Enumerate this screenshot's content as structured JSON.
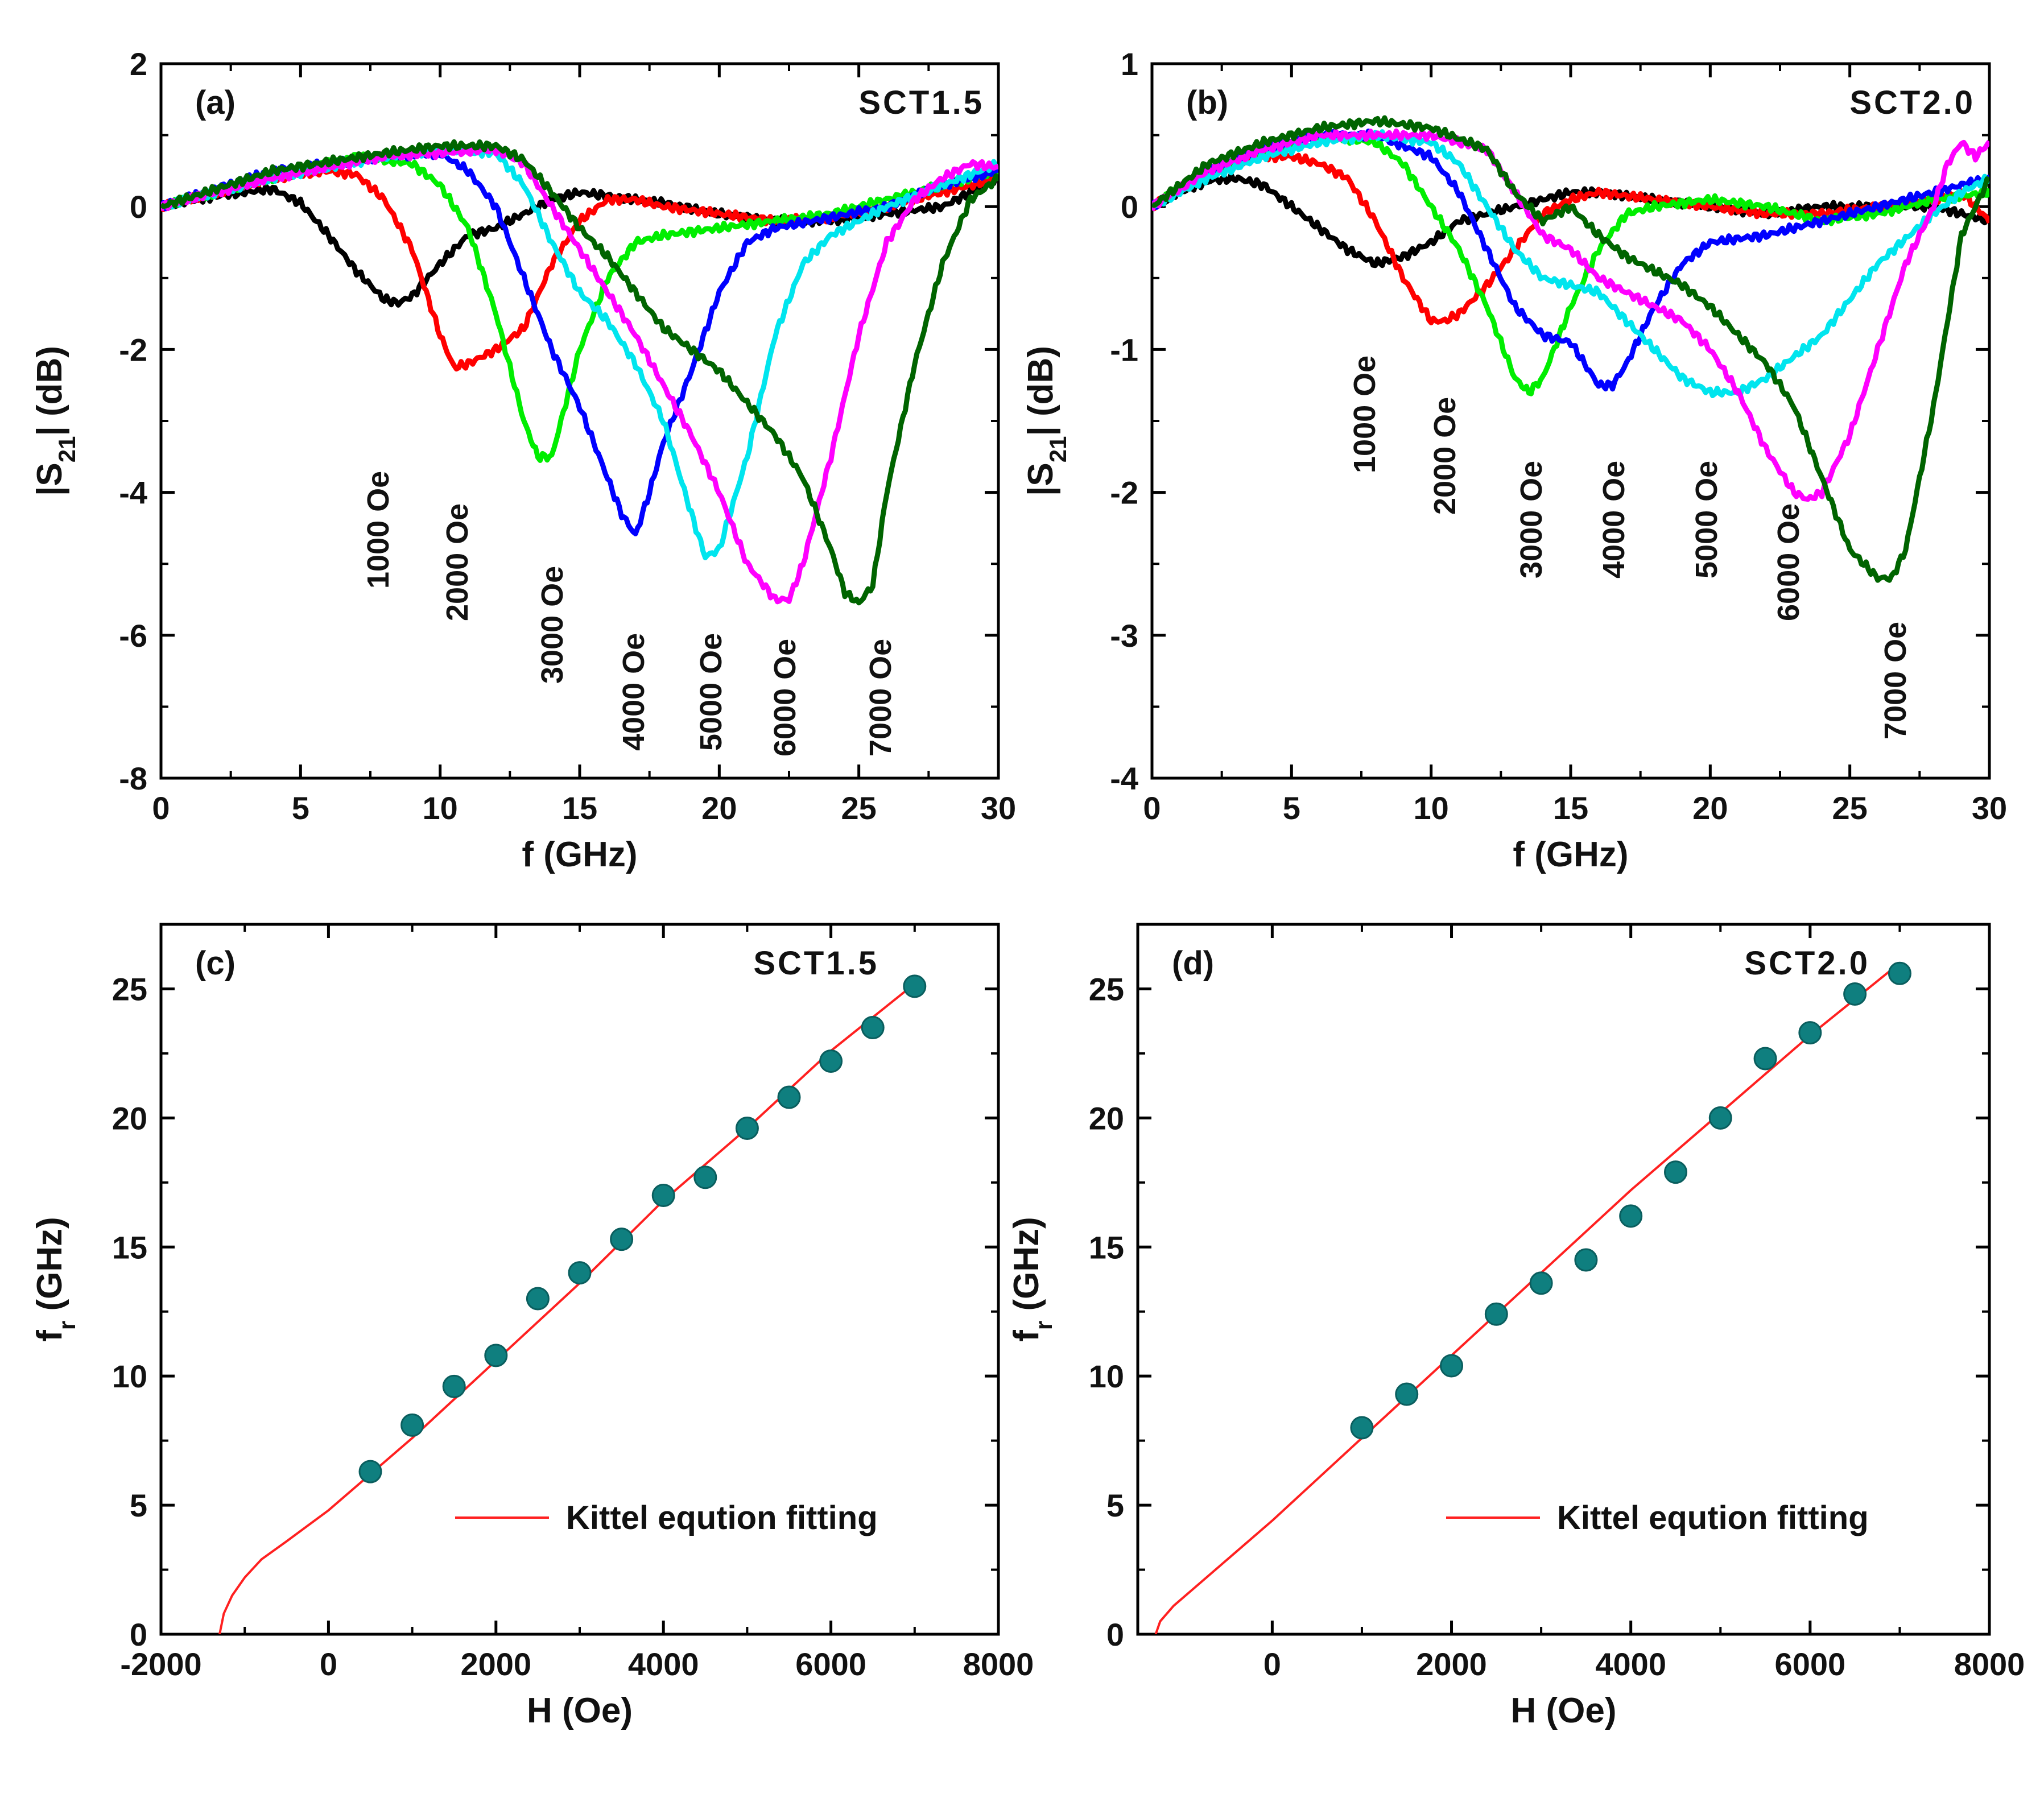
{
  "chart_data": [
    {
      "panel": "(a)",
      "type": "line",
      "sample": "SCT1.5",
      "xlabel": "f (GHz)",
      "ylabel": "|S21| (dB)",
      "xlim": [
        0,
        30
      ],
      "ylim": [
        -8,
        2
      ],
      "xticks": [
        "0",
        "5",
        "10",
        "15",
        "20",
        "25",
        "30"
      ],
      "yticks": [
        "2",
        "0",
        "-2",
        "-4",
        "-6",
        "-8"
      ],
      "grid": false,
      "series": [
        {
          "name": "1000 Oe",
          "color": "#000000",
          "x": [
            0,
            2,
            4,
            5,
            6,
            7,
            8,
            8.5,
            9,
            10,
            11,
            12,
            14,
            15,
            16,
            18,
            20,
            22,
            24,
            26,
            28,
            29,
            30
          ],
          "y": [
            0,
            0.15,
            0.25,
            0.05,
            -0.4,
            -0.9,
            -1.3,
            -1.35,
            -1.25,
            -0.8,
            -0.4,
            -0.3,
            0.1,
            0.2,
            0.15,
            0.05,
            -0.1,
            -0.2,
            -0.2,
            -0.1,
            0,
            0.2,
            0.4
          ]
        },
        {
          "name": "2000 Oe",
          "color": "#ff0000",
          "x": [
            0,
            2,
            4,
            6,
            7,
            8,
            9,
            10,
            10.5,
            11,
            12,
            13,
            14,
            15,
            16,
            17,
            18,
            20,
            22,
            24,
            26,
            28,
            30
          ],
          "y": [
            0,
            0.2,
            0.4,
            0.5,
            0.45,
            0.1,
            -0.6,
            -1.8,
            -2.25,
            -2.2,
            -2,
            -1.7,
            -0.8,
            -0.2,
            0.1,
            0.1,
            0,
            -0.1,
            -0.2,
            -0.15,
            0,
            0.2,
            0.4
          ]
        },
        {
          "name": "3000 Oe",
          "color": "#00ee00",
          "x": [
            0,
            3,
            5,
            7,
            9,
            10,
            11,
            12,
            13,
            13.5,
            14,
            15,
            16,
            17,
            18,
            20,
            22,
            24,
            26,
            28,
            30
          ],
          "y": [
            0,
            0.3,
            0.5,
            0.7,
            0.6,
            0.3,
            -0.3,
            -1.5,
            -3,
            -3.5,
            -3.5,
            -2,
            -1,
            -0.5,
            -0.4,
            -0.3,
            -0.2,
            -0.1,
            0.1,
            0.3,
            0.5
          ]
        },
        {
          "name": "4000 Oe",
          "color": "#0000ff",
          "x": [
            0,
            4,
            8,
            10,
            11,
            12,
            13,
            14,
            15,
            16,
            16.5,
            17,
            17.5,
            18,
            19,
            20,
            21,
            22,
            24,
            26,
            28,
            30
          ],
          "y": [
            0,
            0.5,
            0.7,
            0.75,
            0.5,
            0,
            -1,
            -2,
            -2.8,
            -3.8,
            -4.3,
            -4.6,
            -4,
            -3.3,
            -2.3,
            -1.2,
            -0.5,
            -0.3,
            -0.15,
            0,
            0.3,
            0.5
          ]
        },
        {
          "name": "5000 Oe",
          "color": "#00e5ee",
          "x": [
            0,
            4,
            8,
            10,
            12,
            13,
            14,
            15,
            16,
            17,
            18,
            19,
            19.5,
            20,
            21,
            22,
            23,
            24,
            25,
            26,
            28,
            30
          ],
          "y": [
            0,
            0.4,
            0.7,
            0.8,
            0.75,
            0.3,
            -0.5,
            -1.2,
            -1.6,
            -2.2,
            -3,
            -4.3,
            -4.9,
            -4.8,
            -3.5,
            -1.8,
            -0.8,
            -0.4,
            -0.2,
            0,
            0.3,
            0.6
          ]
        },
        {
          "name": "6000 Oe",
          "color": "#ff00ff",
          "x": [
            0,
            4,
            8,
            10,
            12,
            13,
            14,
            15,
            16,
            17,
            18,
            19,
            20,
            21,
            22,
            22.5,
            23,
            24,
            25,
            26,
            27,
            28,
            29,
            30
          ],
          "y": [
            0,
            0.4,
            0.7,
            0.75,
            0.8,
            0.6,
            0,
            -0.6,
            -1.2,
            -1.8,
            -2.5,
            -3.2,
            -4,
            -5,
            -5.5,
            -5.5,
            -5,
            -3.5,
            -1.8,
            -0.5,
            0.1,
            0.4,
            0.6,
            0.55
          ]
        },
        {
          "name": "7000 Oe",
          "color": "#006400",
          "x": [
            0,
            4,
            8,
            10,
            12,
            13,
            14,
            15,
            16,
            17,
            18,
            20,
            22,
            23,
            24,
            24.5,
            25,
            25.5,
            26,
            27,
            28,
            29,
            30
          ],
          "y": [
            0,
            0.5,
            0.75,
            0.85,
            0.85,
            0.65,
            0.2,
            -0.3,
            -0.7,
            -1.2,
            -1.7,
            -2.3,
            -3.2,
            -3.8,
            -4.8,
            -5.4,
            -5.55,
            -5.3,
            -4,
            -2.2,
            -0.8,
            0.1,
            0.4
          ]
        }
      ]
    },
    {
      "panel": "(b)",
      "type": "line",
      "sample": "SCT2.0",
      "xlabel": "f (GHz)",
      "ylabel": "|S21| (dB)",
      "xlim": [
        0,
        30
      ],
      "ylim": [
        -4,
        1
      ],
      "xticks": [
        "0",
        "5",
        "10",
        "15",
        "20",
        "25",
        "30"
      ],
      "yticks": [
        "1",
        "0",
        "-1",
        "-2",
        "-3",
        "-4"
      ],
      "grid": false,
      "series": [
        {
          "name": "1000 Oe",
          "color": "#000000",
          "x": [
            0,
            1,
            2,
            3,
            4,
            5,
            6,
            7,
            8,
            9,
            10,
            11,
            12,
            13,
            14,
            15,
            16,
            18,
            20,
            22,
            24,
            26,
            28,
            30
          ],
          "y": [
            0,
            0.1,
            0.18,
            0.2,
            0.15,
            0,
            -0.15,
            -0.3,
            -0.4,
            -0.35,
            -0.25,
            -0.1,
            -0.05,
            0,
            0.05,
            0.1,
            0.1,
            0.05,
            0,
            -0.05,
            0,
            0,
            0,
            -0.1
          ]
        },
        {
          "name": "2000 Oe",
          "color": "#ff0000",
          "x": [
            0,
            2,
            4,
            5,
            6,
            7,
            8,
            9,
            10,
            10.5,
            11,
            12,
            13,
            14,
            15,
            16,
            18,
            20,
            22,
            24,
            26,
            28,
            29,
            30
          ],
          "y": [
            0,
            0.25,
            0.35,
            0.35,
            0.3,
            0.2,
            -0.1,
            -0.5,
            -0.8,
            -0.8,
            -0.75,
            -0.55,
            -0.3,
            -0.05,
            0.05,
            0.1,
            0.05,
            0,
            -0.05,
            -0.05,
            0,
            0.05,
            0.1,
            -0.1
          ]
        },
        {
          "name": "3000 Oe",
          "color": "#00ee00",
          "x": [
            0,
            2,
            4,
            6,
            8,
            9,
            10,
            11,
            12,
            13,
            13.5,
            14,
            15,
            16,
            17,
            18,
            20,
            22,
            24,
            26,
            28,
            30
          ],
          "y": [
            0,
            0.25,
            0.4,
            0.5,
            0.45,
            0.3,
            0,
            -0.3,
            -0.7,
            -1.2,
            -1.3,
            -1.2,
            -0.7,
            -0.3,
            -0.05,
            0,
            0.05,
            0,
            -0.1,
            -0.05,
            0.05,
            0.1
          ]
        },
        {
          "name": "4000 Oe",
          "color": "#0000ff",
          "x": [
            0,
            2,
            4,
            6,
            8,
            10,
            11,
            12,
            13,
            14,
            15,
            15.5,
            16,
            16.5,
            17,
            18,
            19,
            20,
            22,
            24,
            26,
            28,
            30
          ],
          "y": [
            0,
            0.25,
            0.4,
            0.5,
            0.5,
            0.35,
            0.1,
            -0.3,
            -0.7,
            -0.9,
            -0.95,
            -1.1,
            -1.25,
            -1.25,
            -1.1,
            -0.7,
            -0.4,
            -0.25,
            -0.2,
            -0.1,
            0,
            0.1,
            0.2
          ]
        },
        {
          "name": "5000 Oe",
          "color": "#00e5ee",
          "x": [
            0,
            2,
            4,
            6,
            8,
            10,
            11,
            12,
            13,
            14,
            15,
            16,
            17,
            18,
            19,
            20,
            21,
            22,
            23,
            24,
            26,
            28,
            29,
            30
          ],
          "y": [
            0,
            0.2,
            0.35,
            0.45,
            0.5,
            0.45,
            0.3,
            0,
            -0.3,
            -0.5,
            -0.55,
            -0.6,
            -0.8,
            -1,
            -1.2,
            -1.3,
            -1.3,
            -1.2,
            -1.05,
            -0.9,
            -0.4,
            -0.05,
            0.1,
            0.2
          ]
        },
        {
          "name": "6000 Oe",
          "color": "#ff00ff",
          "x": [
            0,
            2,
            4,
            6,
            8,
            10,
            12,
            13,
            14,
            15,
            16,
            17,
            18,
            19,
            20,
            21,
            22,
            23,
            23.5,
            24,
            25,
            26,
            27,
            28,
            28.5,
            29,
            29.5,
            30
          ],
          "y": [
            0,
            0.25,
            0.4,
            0.5,
            0.5,
            0.5,
            0.4,
            0.1,
            -0.2,
            -0.3,
            -0.5,
            -0.6,
            -0.7,
            -0.8,
            -1,
            -1.3,
            -1.7,
            -2,
            -2.05,
            -2,
            -1.6,
            -1,
            -0.4,
            0,
            0.3,
            0.45,
            0.35,
            0.45
          ]
        },
        {
          "name": "7000 Oe",
          "color": "#006400",
          "x": [
            0,
            2,
            4,
            6,
            8,
            10,
            12,
            13,
            14,
            15,
            16,
            17,
            18,
            19,
            20,
            21,
            22,
            23,
            24,
            25,
            26,
            26.5,
            27,
            28,
            29,
            30
          ],
          "y": [
            0,
            0.3,
            0.45,
            0.55,
            0.6,
            0.55,
            0.4,
            0.1,
            -0.1,
            0,
            -0.2,
            -0.35,
            -0.45,
            -0.55,
            -0.7,
            -0.9,
            -1.1,
            -1.4,
            -1.9,
            -2.4,
            -2.6,
            -2.6,
            -2.4,
            -1.4,
            -0.2,
            0.2
          ]
        }
      ]
    },
    {
      "panel": "(c)",
      "type": "scatter",
      "sample": "SCT1.5",
      "xlabel": "H (Oe)",
      "ylabel": "fr (GHz)",
      "xlim": [
        -2000,
        8000
      ],
      "ylim": [
        0,
        27.5
      ],
      "xticks": [
        "-2000",
        "0",
        "2000",
        "4000",
        "6000",
        "8000"
      ],
      "yticks": [
        "0",
        "5",
        "10",
        "15",
        "20",
        "25"
      ],
      "grid": false,
      "legend": "Kittel eqution fitting",
      "legend_position": "bottom-right",
      "points": {
        "x": [
          500,
          1000,
          1500,
          2000,
          2500,
          3000,
          3500,
          4000,
          4500,
          5000,
          5500,
          6000,
          6500,
          7000
        ],
        "y": [
          6.3,
          8.1,
          9.6,
          10.8,
          13.0,
          14.0,
          15.3,
          17.0,
          17.7,
          19.6,
          20.8,
          22.2,
          23.5,
          25.1
        ]
      },
      "fit_line": {
        "x": [
          -1300,
          -1250,
          -1150,
          -1000,
          -800,
          -500,
          0,
          1000,
          2000,
          3000,
          4000,
          5000,
          6000,
          7000
        ],
        "y": [
          0,
          0.8,
          1.5,
          2.2,
          2.9,
          3.6,
          4.8,
          7.6,
          10.6,
          13.6,
          16.8,
          19.6,
          22.6,
          25.2
        ]
      }
    },
    {
      "panel": "(d)",
      "type": "scatter",
      "sample": "SCT2.0",
      "xlabel": "H (Oe)",
      "ylabel": "fr (GHz)",
      "xlim": [
        -1500,
        8000
      ],
      "ylim": [
        0,
        27.5
      ],
      "xticks": [
        "0",
        "2000",
        "4000",
        "6000",
        "8000"
      ],
      "yticks": [
        "0",
        "5",
        "10",
        "15",
        "20",
        "25"
      ],
      "grid": false,
      "legend": "Kittel eqution fitting",
      "legend_position": "bottom-right",
      "points": {
        "x": [
          1000,
          1500,
          2000,
          2500,
          3000,
          3500,
          4000,
          4500,
          5000,
          5500,
          6000,
          6500,
          7000
        ],
        "y": [
          8.0,
          9.3,
          10.4,
          12.4,
          13.6,
          14.5,
          16.2,
          17.9,
          20.0,
          22.3,
          23.3,
          24.8,
          25.6
        ]
      },
      "fit_line": {
        "x": [
          -1300,
          -1250,
          -1100,
          -900,
          -500,
          0,
          1000,
          2000,
          3000,
          4000,
          5000,
          6000,
          7000
        ],
        "y": [
          0,
          0.5,
          1.1,
          1.7,
          2.9,
          4.4,
          7.6,
          10.8,
          14.0,
          17.2,
          20.2,
          23.2,
          26.0
        ]
      }
    }
  ]
}
